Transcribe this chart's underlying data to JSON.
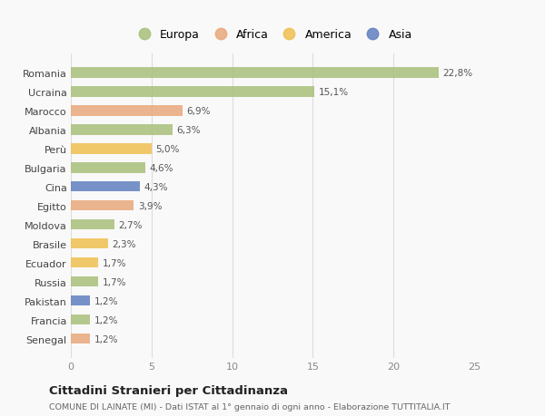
{
  "countries": [
    "Romania",
    "Ucraina",
    "Marocco",
    "Albania",
    "Perù",
    "Bulgaria",
    "Cina",
    "Egitto",
    "Moldova",
    "Brasile",
    "Ecuador",
    "Russia",
    "Pakistan",
    "Francia",
    "Senegal"
  ],
  "values": [
    22.8,
    15.1,
    6.9,
    6.3,
    5.0,
    4.6,
    4.3,
    3.9,
    2.7,
    2.3,
    1.7,
    1.7,
    1.2,
    1.2,
    1.2
  ],
  "labels": [
    "22,8%",
    "15,1%",
    "6,9%",
    "6,3%",
    "5,0%",
    "4,6%",
    "4,3%",
    "3,9%",
    "2,7%",
    "2,3%",
    "1,7%",
    "1,7%",
    "1,2%",
    "1,2%",
    "1,2%"
  ],
  "continents": [
    "Europa",
    "Europa",
    "Africa",
    "Europa",
    "America",
    "Europa",
    "Asia",
    "Africa",
    "Europa",
    "America",
    "America",
    "Europa",
    "Asia",
    "Europa",
    "Africa"
  ],
  "continent_colors": {
    "Europa": "#a8c07a",
    "Africa": "#e8a87c",
    "America": "#f0c050",
    "Asia": "#6080c0"
  },
  "legend_order": [
    "Europa",
    "Africa",
    "America",
    "Asia"
  ],
  "title": "Cittadini Stranieri per Cittadinanza",
  "subtitle": "COMUNE DI LAINATE (MI) - Dati ISTAT al 1° gennaio di ogni anno - Elaborazione TUTTITALIA.IT",
  "xlim": [
    0,
    25
  ],
  "xticks": [
    0,
    5,
    10,
    15,
    20,
    25
  ],
  "background_color": "#f9f9f9",
  "grid_color": "#dddddd",
  "bar_height": 0.55
}
